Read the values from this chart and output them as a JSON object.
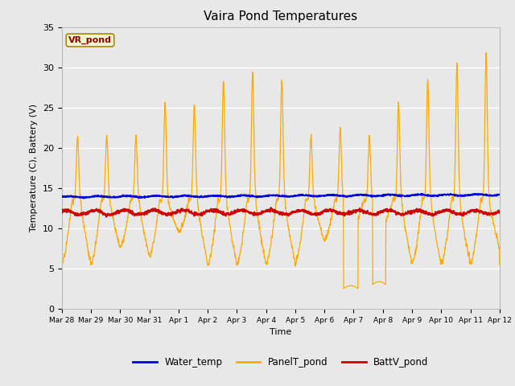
{
  "title": "Vaira Pond Temperatures",
  "xlabel": "Time",
  "ylabel": "Temperature (C), Battery (V)",
  "ylim": [
    0,
    35
  ],
  "background_color": "#e8e8e8",
  "plot_bg_color": "#e8e8e8",
  "annotation_text": "VR_pond",
  "annotation_bg": "#f5f5d0",
  "annotation_border": "#aa8800",
  "legend_entries": [
    "Water_temp",
    "PanelT_pond",
    "BattV_pond"
  ],
  "legend_colors": [
    "#0000dd",
    "#ffaa00",
    "#cc0000"
  ],
  "water_temp_color": "#0000dd",
  "panel_temp_color": "#ffaa00",
  "batt_color": "#cc0000",
  "xtick_labels": [
    "Mar 28",
    "Mar 29",
    "Mar 30",
    "Mar 31",
    "Apr 1",
    "Apr 2",
    "Apr 3",
    "Apr 4",
    "Apr 5",
    "Apr 6",
    "Apr 7",
    "Apr 8",
    "Apr 9",
    "Apr 10",
    "Apr 11",
    "Apr 12"
  ],
  "ytick_labels": [
    0,
    5,
    10,
    15,
    20,
    25,
    30,
    35
  ],
  "seed": 42,
  "n_points": 1500
}
